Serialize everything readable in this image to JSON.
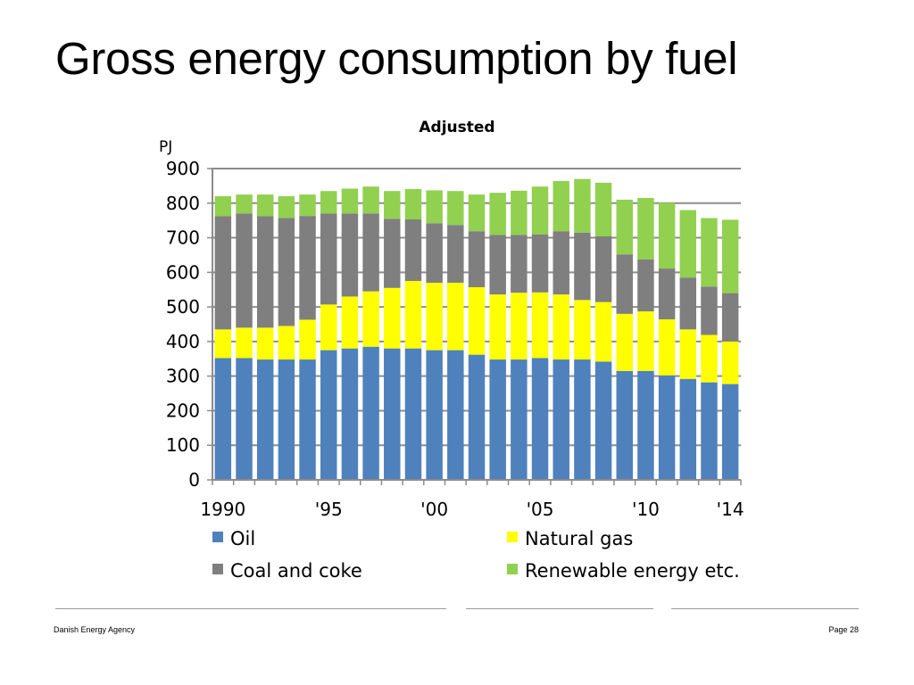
{
  "slide": {
    "title": "Gross energy consumption by fuel"
  },
  "footer": {
    "organization": "Danish Energy Agency",
    "page_label": "Page 28"
  },
  "chart_data": {
    "type": "bar",
    "stacked": true,
    "title": "Adjusted",
    "ylabel": "PJ",
    "xlabel": "",
    "ylim": [
      0,
      900
    ],
    "yticks": [
      0,
      100,
      200,
      300,
      400,
      500,
      600,
      700,
      800,
      900
    ],
    "grid": true,
    "legend_position": "bottom",
    "categories": [
      "1990",
      "1991",
      "1992",
      "1993",
      "1994",
      "1995",
      "1996",
      "1997",
      "1998",
      "1999",
      "2000",
      "2001",
      "2002",
      "2003",
      "2004",
      "2005",
      "2006",
      "2007",
      "2008",
      "2009",
      "2010",
      "2011",
      "2012",
      "2013",
      "2014"
    ],
    "xtick_labels": [
      {
        "category": "1990",
        "label": "1990"
      },
      {
        "category": "1995",
        "label": "'95"
      },
      {
        "category": "2000",
        "label": "'00"
      },
      {
        "category": "2005",
        "label": "'05"
      },
      {
        "category": "2010",
        "label": "'10"
      },
      {
        "category": "2014",
        "label": "'14"
      }
    ],
    "series": [
      {
        "name": "Oil",
        "color": "#4f81bd",
        "values": [
          352,
          352,
          348,
          348,
          348,
          375,
          380,
          385,
          380,
          380,
          375,
          375,
          362,
          348,
          348,
          352,
          348,
          348,
          342,
          315,
          315,
          302,
          292,
          282,
          277
        ]
      },
      {
        "name": "Natural gas",
        "color": "#ffff00",
        "values": [
          83,
          88,
          92,
          97,
          115,
          132,
          150,
          160,
          175,
          195,
          195,
          195,
          195,
          188,
          193,
          190,
          188,
          172,
          172,
          165,
          172,
          162,
          143,
          137,
          123
        ]
      },
      {
        "name": "Coal and coke",
        "color": "#7f7f7f",
        "values": [
          327,
          330,
          322,
          312,
          300,
          263,
          240,
          225,
          200,
          178,
          172,
          167,
          162,
          172,
          167,
          168,
          183,
          195,
          190,
          172,
          150,
          147,
          150,
          140,
          140
        ]
      },
      {
        "name": "Renewable energy etc.",
        "color": "#92d050",
        "values": [
          58,
          55,
          63,
          63,
          62,
          65,
          72,
          78,
          80,
          88,
          95,
          98,
          106,
          122,
          128,
          138,
          145,
          155,
          155,
          158,
          178,
          190,
          195,
          198,
          212
        ]
      }
    ]
  }
}
